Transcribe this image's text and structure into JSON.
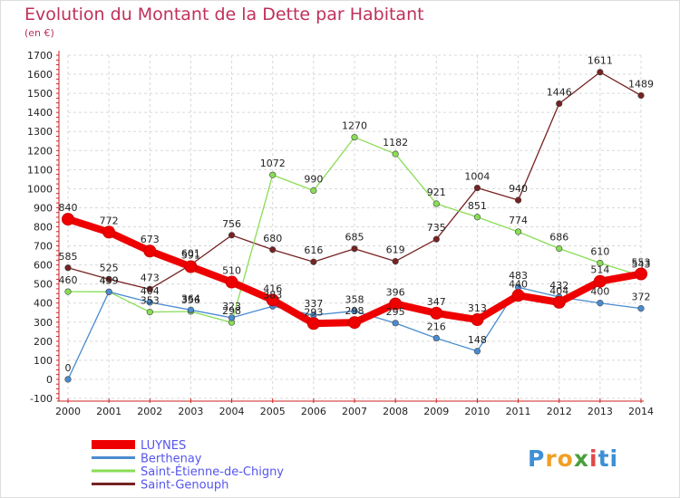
{
  "header": {
    "title": "Evolution du Montant de la Dette par Habitant",
    "subtitle": "(en €)"
  },
  "logo": {
    "letters": [
      "P",
      "r",
      "o",
      "x",
      "i",
      "t",
      "i"
    ],
    "colors": [
      "#3d8fd6",
      "#f0a023",
      "#f0a023",
      "#4aa03c",
      "#e04848",
      "#3d8fd6",
      "#3d8fd6"
    ]
  },
  "chart_data": {
    "type": "line",
    "x": [
      2000,
      2001,
      2002,
      2003,
      2004,
      2005,
      2006,
      2007,
      2008,
      2009,
      2010,
      2011,
      2012,
      2013,
      2014
    ],
    "xlim": [
      2000,
      2014
    ],
    "ylim": [
      -100,
      1700
    ],
    "yticks": [
      -100,
      0,
      100,
      200,
      300,
      400,
      500,
      600,
      700,
      800,
      900,
      1000,
      1100,
      1200,
      1300,
      1400,
      1500,
      1600,
      1700
    ],
    "grid": true,
    "legend_position": "bottom-left",
    "series": [
      {
        "name": "LUYNES",
        "color": "#ee0000",
        "values": [
          840,
          772,
          673,
          591,
          510,
          416,
          293,
          298,
          396,
          347,
          313,
          440,
          404,
          514,
          553
        ]
      },
      {
        "name": "Berthenay",
        "color": "#4a8cd0",
        "values": [
          0,
          459,
          404,
          364,
          323,
          383,
          337,
          358,
          295,
          216,
          148,
          483,
          432,
          400,
          372
        ]
      },
      {
        "name": "Saint-Étienne-de-Chigny",
        "color": "#88dd55",
        "values": [
          460,
          459,
          353,
          356,
          298,
          1072,
          990,
          1270,
          1182,
          921,
          851,
          774,
          686,
          610,
          543
        ]
      },
      {
        "name": "Saint-Genouph",
        "color": "#772222",
        "values": [
          585,
          525,
          473,
          601,
          756,
          680,
          616,
          685,
          619,
          735,
          1004,
          940,
          1446,
          1611,
          1489
        ]
      }
    ]
  }
}
